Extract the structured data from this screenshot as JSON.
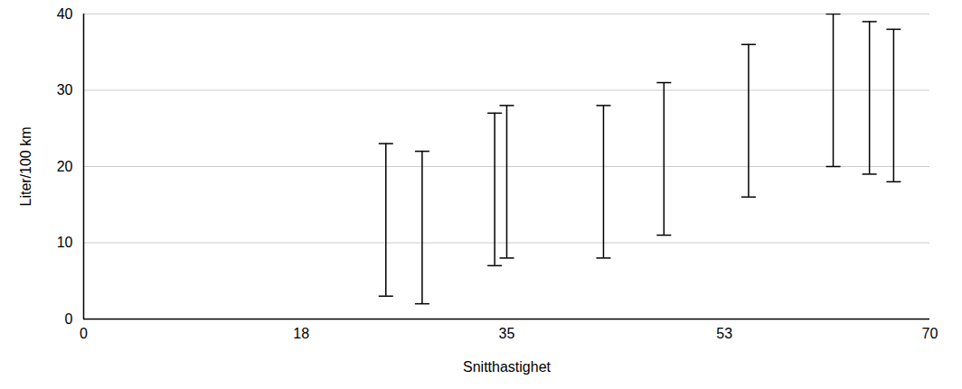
{
  "chart_data": {
    "type": "scatter",
    "x_label": "Snitthastighet",
    "y_label": "Liter/100 km",
    "x": [
      25,
      28,
      34,
      35,
      43,
      48,
      55,
      62,
      65,
      67
    ],
    "values": [
      13,
      12,
      17,
      18,
      18,
      21,
      26,
      30,
      29,
      28
    ],
    "errors": [
      10,
      10,
      10,
      10,
      10,
      10,
      10,
      10,
      10,
      10
    ],
    "color": "#1a9be6",
    "marker": "plus",
    "xlim": [
      0,
      70
    ],
    "xticks": [
      0,
      18,
      35,
      53,
      70
    ],
    "ylim": [
      0,
      40
    ],
    "yticks": [
      0,
      10,
      20,
      30,
      40
    ],
    "grid": true
  }
}
